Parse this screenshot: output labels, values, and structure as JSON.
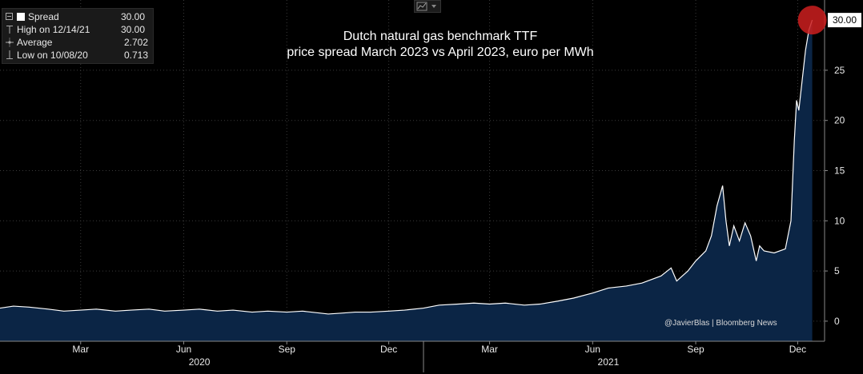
{
  "legend": {
    "rows": [
      {
        "label": "Spread",
        "value": "30.00"
      },
      {
        "label": "High on 12/14/21",
        "value": "30.00"
      },
      {
        "label": "Average",
        "value": "2.702"
      },
      {
        "label": "Low on 10/08/20",
        "value": "0.713"
      }
    ]
  },
  "title_line1": "Dutch natural gas benchmark TTF",
  "title_line2": "price spread March 2023 vs April 2023, euro per MWh",
  "watermark": "@JavierBlas | Bloomberg News",
  "last_value_label": "30.00",
  "colors": {
    "background": "#000000",
    "area_fill": "#0b2545",
    "line": "#ffffff",
    "grid": "#3a3a3a",
    "marker": "#cc1f1f",
    "text": "#ffffff"
  },
  "chart_data": {
    "type": "area",
    "title": "Dutch natural gas benchmark TTF price spread March 2023 vs April 2023, euro per MWh",
    "series": [
      {
        "name": "Spread",
        "points": [
          [
            "2019-12-20",
            1.3
          ],
          [
            "2020-01-01",
            1.5
          ],
          [
            "2020-01-15",
            1.4
          ],
          [
            "2020-02-01",
            1.2
          ],
          [
            "2020-02-15",
            1.0
          ],
          [
            "2020-03-01",
            1.1
          ],
          [
            "2020-03-15",
            1.2
          ],
          [
            "2020-04-01",
            1.0
          ],
          [
            "2020-04-15",
            1.1
          ],
          [
            "2020-05-01",
            1.2
          ],
          [
            "2020-05-15",
            1.0
          ],
          [
            "2020-06-01",
            1.1
          ],
          [
            "2020-06-15",
            1.2
          ],
          [
            "2020-07-01",
            1.0
          ],
          [
            "2020-07-15",
            1.1
          ],
          [
            "2020-08-01",
            0.9
          ],
          [
            "2020-08-15",
            1.0
          ],
          [
            "2020-09-01",
            0.9
          ],
          [
            "2020-09-15",
            1.0
          ],
          [
            "2020-10-01",
            0.8
          ],
          [
            "2020-10-08",
            0.713
          ],
          [
            "2020-10-20",
            0.8
          ],
          [
            "2020-11-01",
            0.9
          ],
          [
            "2020-11-15",
            0.9
          ],
          [
            "2020-12-01",
            1.0
          ],
          [
            "2020-12-15",
            1.1
          ],
          [
            "2021-01-01",
            1.3
          ],
          [
            "2021-01-15",
            1.6
          ],
          [
            "2021-02-01",
            1.7
          ],
          [
            "2021-02-15",
            1.8
          ],
          [
            "2021-03-01",
            1.7
          ],
          [
            "2021-03-15",
            1.8
          ],
          [
            "2021-04-01",
            1.6
          ],
          [
            "2021-04-15",
            1.7
          ],
          [
            "2021-05-01",
            2.0
          ],
          [
            "2021-05-15",
            2.3
          ],
          [
            "2021-06-01",
            2.8
          ],
          [
            "2021-06-15",
            3.3
          ],
          [
            "2021-07-01",
            3.5
          ],
          [
            "2021-07-15",
            3.8
          ],
          [
            "2021-08-01",
            4.5
          ],
          [
            "2021-08-10",
            5.3
          ],
          [
            "2021-08-15",
            4.0
          ],
          [
            "2021-08-25",
            5.0
          ],
          [
            "2021-09-01",
            6.0
          ],
          [
            "2021-09-10",
            7.0
          ],
          [
            "2021-09-15",
            8.5
          ],
          [
            "2021-09-20",
            11.5
          ],
          [
            "2021-09-25",
            13.5
          ],
          [
            "2021-09-28",
            10.0
          ],
          [
            "2021-10-01",
            7.5
          ],
          [
            "2021-10-05",
            9.5
          ],
          [
            "2021-10-10",
            8.0
          ],
          [
            "2021-10-15",
            9.8
          ],
          [
            "2021-10-20",
            8.5
          ],
          [
            "2021-10-25",
            6.0
          ],
          [
            "2021-10-28",
            7.5
          ],
          [
            "2021-11-01",
            7.0
          ],
          [
            "2021-11-10",
            6.8
          ],
          [
            "2021-11-20",
            7.2
          ],
          [
            "2021-11-25",
            10.0
          ],
          [
            "2021-11-28",
            18.0
          ],
          [
            "2021-11-30",
            22.0
          ],
          [
            "2021-12-02",
            21.0
          ],
          [
            "2021-12-05",
            24.0
          ],
          [
            "2021-12-08",
            27.0
          ],
          [
            "2021-12-11",
            29.0
          ],
          [
            "2021-12-14",
            30.0
          ]
        ]
      }
    ],
    "xlim": [
      "2019-12-20",
      "2021-12-25"
    ],
    "ylim": [
      -2,
      32
    ],
    "yticks": [
      0,
      5,
      10,
      15,
      20,
      25
    ],
    "xtick_labels": [
      {
        "date": "2020-03-01",
        "label": "Mar"
      },
      {
        "date": "2020-06-01",
        "label": "Jun"
      },
      {
        "date": "2020-09-01",
        "label": "Sep"
      },
      {
        "date": "2020-12-01",
        "label": "Dec"
      },
      {
        "date": "2021-03-01",
        "label": "Mar"
      },
      {
        "date": "2021-06-01",
        "label": "Jun"
      },
      {
        "date": "2021-09-01",
        "label": "Sep"
      },
      {
        "date": "2021-12-01",
        "label": "Dec"
      }
    ],
    "year_labels": [
      {
        "date": "2020-06-15",
        "label": "2020"
      },
      {
        "date": "2021-06-15",
        "label": "2021"
      }
    ],
    "year_separators": [
      "2021-01-01"
    ],
    "grid": true,
    "legend_position": "top-left"
  }
}
